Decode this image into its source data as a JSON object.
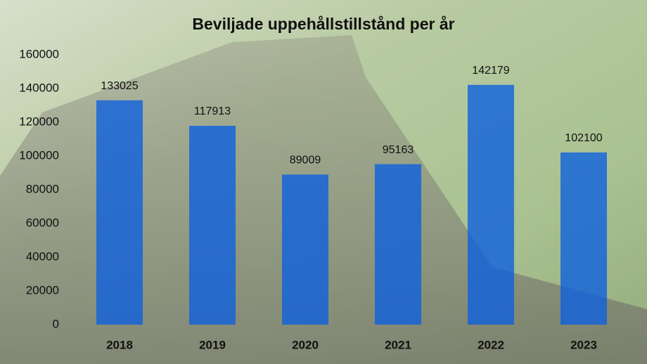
{
  "chart_data": {
    "type": "bar",
    "title": "Beviljade uppehållstillstånd per år",
    "categories": [
      "2018",
      "2019",
      "2020",
      "2021",
      "2022",
      "2023"
    ],
    "values": [
      133025,
      117913,
      89009,
      95163,
      142179,
      102100
    ],
    "color": "#0a5fe0",
    "ylim": [
      0,
      160000
    ],
    "yticks": [
      0,
      20000,
      40000,
      60000,
      80000,
      100000,
      120000,
      140000,
      160000
    ],
    "grid": false
  }
}
